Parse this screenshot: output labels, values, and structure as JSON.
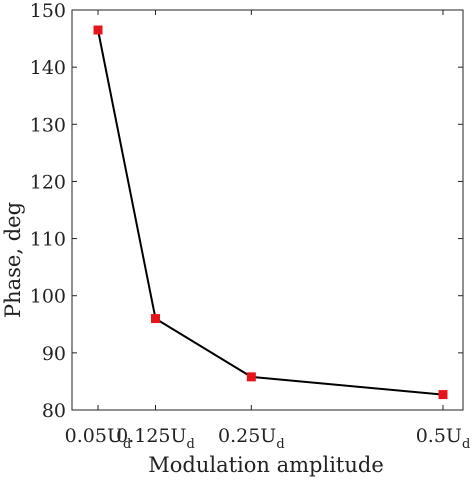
{
  "chart_data": {
    "type": "line",
    "xlabel": "Modulation amplitude",
    "ylabel": "Phase, deg",
    "ylim": [
      80,
      150
    ],
    "yticks": [
      80,
      90,
      100,
      110,
      120,
      130,
      140,
      150
    ],
    "xlim": [
      0.05,
      0.5
    ],
    "categories": [
      {
        "main": "0.05U",
        "sub": "d"
      },
      {
        "main": "0.125U",
        "sub": "d"
      },
      {
        "main": "0.25U",
        "sub": "d"
      },
      {
        "main": "0.5U",
        "sub": "d"
      }
    ],
    "x": [
      0.05,
      0.125,
      0.25,
      0.5
    ],
    "series": [
      {
        "values": [
          146.5,
          96,
          85.8,
          82.7
        ]
      }
    ],
    "grid": false,
    "line_color": "#000000",
    "marker_color": "#e8141b"
  }
}
